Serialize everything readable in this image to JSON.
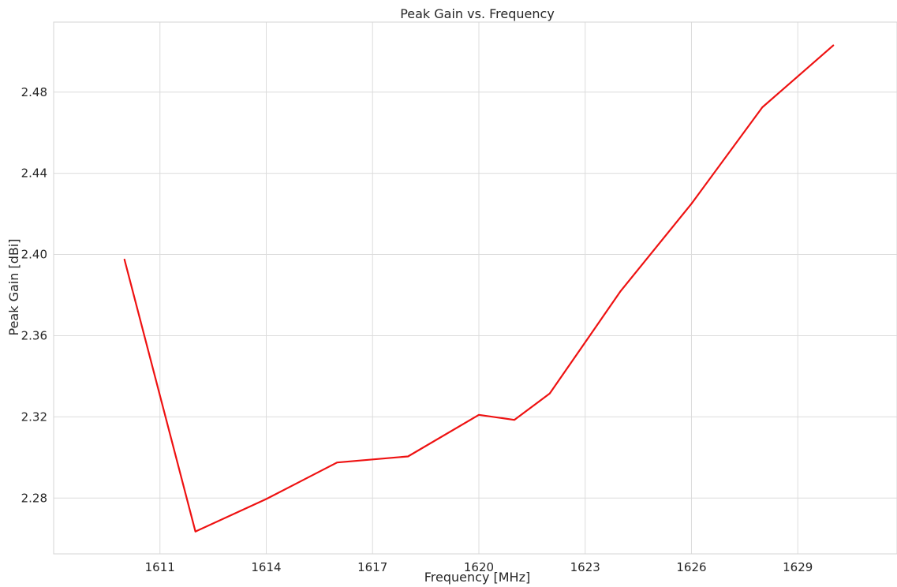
{
  "chart_data": {
    "type": "line",
    "title": "Peak Gain vs. Frequency",
    "xlabel": "Frequency [MHz]",
    "ylabel": "Peak Gain [dBi]",
    "x": [
      1610,
      1612,
      1614,
      1616,
      1618,
      1620,
      1621,
      1622,
      1624,
      1626,
      1628,
      1630
    ],
    "series": [
      {
        "values": [
          2.3975,
          2.2635,
          2.2795,
          2.2975,
          2.3005,
          2.321,
          2.3185,
          2.3315,
          2.382,
          2.425,
          2.4725,
          2.503
        ],
        "color": "#ee1111"
      }
    ],
    "xlim": [
      1608,
      1631.8
    ],
    "ylim": [
      2.2525,
      2.5145
    ],
    "xticks": [
      1611,
      1614,
      1617,
      1620,
      1623,
      1626,
      1629
    ],
    "xtick_labels": [
      "1611",
      "1614",
      "1617",
      "1620",
      "1623",
      "1626",
      "1629"
    ],
    "yticks": [
      2.28,
      2.32,
      2.36,
      2.4,
      2.44,
      2.48
    ],
    "ytick_labels": [
      "2.28",
      "2.32",
      "2.36",
      "2.40",
      "2.44",
      "2.48"
    ],
    "grid": true,
    "legend": false
  }
}
